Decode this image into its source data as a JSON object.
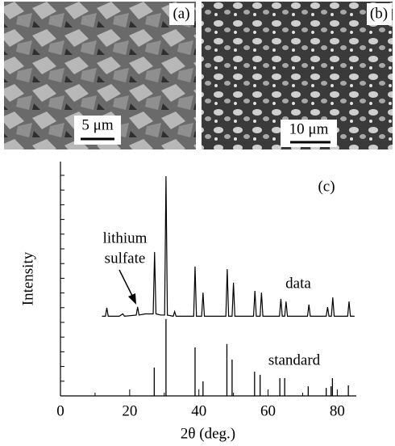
{
  "images": [
    {
      "label": "(a)",
      "scale_bar": "5 μm"
    },
    {
      "label": "(b)",
      "scale_bar": "10 μm"
    }
  ],
  "chart_data": {
    "type": "line",
    "panel_label": "(c)",
    "xlabel": "2θ (deg.)",
    "ylabel": "Intensity",
    "annotations": [
      "lithium",
      "sulfate",
      "data",
      "standard"
    ],
    "xlim": [
      0,
      85.5
    ],
    "ylim": [
      0,
      100
    ],
    "xticks": [
      0,
      20,
      40,
      60,
      80
    ],
    "series": [
      {
        "name": "data",
        "style": "line",
        "color": "#000000",
        "x": [
          12,
          13.0,
          13.4,
          13.8,
          17,
          18.0,
          18.5,
          21.9,
          22.3,
          22.7,
          24.5,
          26.8,
          27.2,
          27.6,
          29.0,
          30.1,
          30.5,
          30.9,
          32.6,
          33.0,
          33.4,
          36.0,
          38.5,
          38.9,
          39.3,
          40.8,
          41.2,
          41.6,
          47.8,
          48.2,
          48.6,
          49.6,
          50.0,
          50.4,
          55.8,
          56.2,
          56.6,
          57.7,
          58.1,
          58.5,
          63.3,
          63.7,
          64.1,
          64.8,
          65.2,
          65.6,
          71.4,
          71.8,
          72.2,
          76.8,
          77.2,
          77.6,
          78.3,
          78.7,
          79.1,
          83.0,
          83.4,
          83.8,
          85
        ],
        "values": [
          34,
          34,
          37.6,
          34,
          34,
          35,
          34,
          34.5,
          38,
          34.5,
          35,
          35,
          61.4,
          35,
          34.5,
          34.5,
          93.8,
          34.5,
          34,
          36,
          34,
          34,
          34,
          55.2,
          34,
          34,
          44.1,
          34,
          34,
          54.1,
          34,
          34,
          48.3,
          34,
          34,
          44.8,
          34,
          34,
          44.1,
          34,
          34,
          41.4,
          34,
          34,
          40.3,
          34,
          34,
          39,
          34,
          34,
          37.9,
          34,
          34,
          42,
          34,
          34,
          40.3,
          34,
          34
        ]
      },
      {
        "name": "standard",
        "style": "stem",
        "color": "#000000",
        "x": [
          27.1,
          30.5,
          38.9,
          41.2,
          48.1,
          49.6,
          56.1,
          57.7,
          63.4,
          64.8,
          71.6,
          76.8,
          78.2,
          78.6,
          83.2
        ],
        "values": [
          12.1,
          32.8,
          20.7,
          6.2,
          22.1,
          15.5,
          10.3,
          9,
          7.6,
          7.6,
          4.1,
          3.4,
          4.1,
          7.6,
          4.5
        ]
      }
    ]
  }
}
